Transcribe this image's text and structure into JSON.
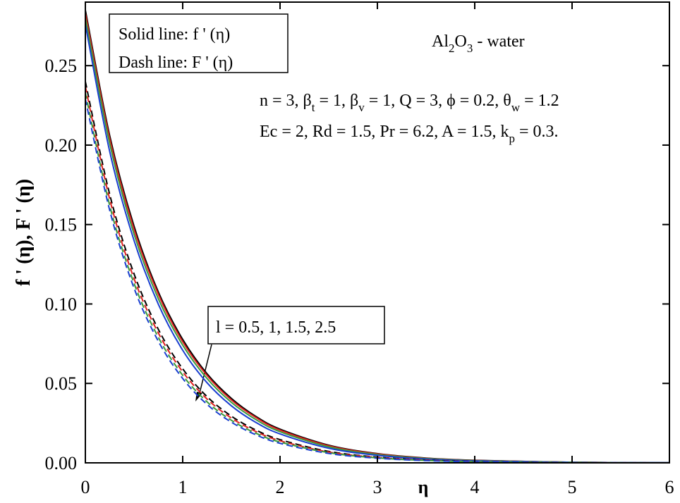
{
  "chart_data": {
    "type": "line",
    "xlabel": "η",
    "ylabel": "f ' (η), F ' (η)",
    "x": [
      0,
      0.25,
      0.5,
      0.75,
      1,
      1.25,
      1.5,
      1.75,
      2,
      2.5,
      3,
      3.5,
      4,
      5,
      6
    ],
    "series": [
      {
        "color": "#000000",
        "style": "solid",
        "values": [
          0.285,
          0.206,
          0.149,
          0.1075,
          0.0777,
          0.0561,
          0.0406,
          0.0293,
          0.0212,
          0.0111,
          0.0058,
          0.003,
          0.0016,
          0.0004,
          0.0001
        ]
      },
      {
        "color": "#e02020",
        "style": "solid",
        "values": [
          0.283,
          0.204,
          0.147,
          0.106,
          0.0762,
          0.055,
          0.0396,
          0.0286,
          0.0206,
          0.0107,
          0.0056,
          0.0029,
          0.0015,
          0.0004,
          0.0001
        ]
      },
      {
        "color": "#3a9a3a",
        "style": "solid",
        "values": [
          0.28,
          0.201,
          0.144,
          0.1033,
          0.0741,
          0.0531,
          0.0381,
          0.0273,
          0.0196,
          0.0101,
          0.0052,
          0.0027,
          0.0014,
          0.0004,
          0.0001
        ]
      },
      {
        "color": "#1a3fd0",
        "style": "solid",
        "values": [
          0.276,
          0.196,
          0.14,
          0.0998,
          0.0709,
          0.0504,
          0.0359,
          0.0255,
          0.0182,
          0.0092,
          0.0047,
          0.0024,
          0.0012,
          0.0003,
          0.0001
        ]
      },
      {
        "color": "#000000",
        "style": "dash",
        "values": [
          0.24,
          0.169,
          0.119,
          0.084,
          0.0592,
          0.0417,
          0.0294,
          0.0207,
          0.0146,
          0.0072,
          0.0036,
          0.0018,
          0.0009,
          0.0002,
          0
        ]
      },
      {
        "color": "#e02020",
        "style": "dash",
        "values": [
          0.237,
          0.166,
          0.116,
          0.0817,
          0.0573,
          0.0402,
          0.0282,
          0.0198,
          0.0139,
          0.0068,
          0.0034,
          0.0017,
          0.0008,
          0.0002,
          0
        ]
      },
      {
        "color": "#3a9a3a",
        "style": "dash",
        "values": [
          0.233,
          0.162,
          0.113,
          0.079,
          0.0551,
          0.0384,
          0.0268,
          0.0187,
          0.0131,
          0.0064,
          0.0031,
          0.0015,
          0.0007,
          0.0002,
          0
        ]
      },
      {
        "color": "#1a3fd0",
        "style": "dash",
        "values": [
          0.229,
          0.159,
          0.11,
          0.0765,
          0.0531,
          0.0368,
          0.0256,
          0.0177,
          0.0123,
          0.0059,
          0.0029,
          0.0014,
          0.0007,
          0.0002,
          0
        ]
      }
    ],
    "xlim": [
      0,
      6
    ],
    "xticks": [
      0,
      1,
      2,
      3,
      4,
      5,
      6
    ],
    "ylim": [
      0,
      0.29
    ],
    "yticks": [
      {
        "value": 0,
        "label": "0.00"
      },
      {
        "value": 0.05,
        "label": "0.05"
      },
      {
        "value": 0.1,
        "label": "0.10"
      },
      {
        "value": 0.15,
        "label": "0.15"
      },
      {
        "value": 0.2,
        "label": "0.20"
      },
      {
        "value": 0.25,
        "label": "0.25"
      }
    ],
    "annotations": {
      "line_key": [
        "Solid line: f ' (η)",
        "Dash line: F ' (η)"
      ],
      "fluid": [
        "Al",
        "2",
        "O",
        "3",
        " - water"
      ],
      "params_1": [
        "n = 3, β",
        "t",
        " = 1, β",
        "v",
        " = 1, Q = 3, ϕ = 0.2, θ",
        "w",
        " = 1.2"
      ],
      "params_2": [
        "Ec = 2, Rd = 1.5, Pr = 6.2, A = 1.5, k",
        "p",
        " = 0.3."
      ],
      "arrow_label": "l = 0.5, 1, 1.5, 2.5"
    }
  }
}
